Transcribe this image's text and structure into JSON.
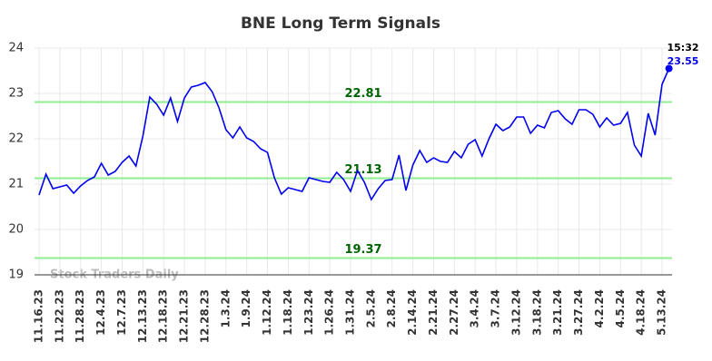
{
  "chart_data": {
    "type": "line",
    "title": "BNE Long Term Signals",
    "categories": [
      "11.16.23",
      null,
      null,
      "11.22.23",
      null,
      null,
      "11.28.23",
      null,
      null,
      "12.4.23",
      null,
      null,
      "12.7.23",
      null,
      null,
      "12.13.23",
      null,
      null,
      "12.18.23",
      null,
      null,
      "12.21.23",
      null,
      null,
      "12.28.23",
      null,
      null,
      "1.3.24",
      null,
      null,
      "1.9.24",
      null,
      null,
      "1.12.24",
      null,
      null,
      "1.18.24",
      null,
      null,
      "1.23.24",
      null,
      null,
      "1.26.24",
      null,
      null,
      "1.31.24",
      null,
      null,
      "2.5.24",
      null,
      null,
      "2.8.24",
      null,
      null,
      "2.14.24",
      null,
      null,
      "2.21.24",
      null,
      null,
      "2.27.24",
      null,
      null,
      "3.4.24",
      null,
      null,
      "3.7.24",
      null,
      null,
      "3.12.24",
      null,
      null,
      "3.18.24",
      null,
      null,
      "3.21.24",
      null,
      null,
      "3.27.24",
      null,
      null,
      "4.2.24",
      null,
      null,
      "4.5.24",
      null,
      null,
      "4.18.24",
      null,
      null,
      "5.13.24",
      null
    ],
    "series": [
      {
        "name": "BNE",
        "color": "#0000ee",
        "values": [
          20.76,
          21.22,
          20.9,
          20.94,
          20.98,
          20.8,
          20.96,
          21.08,
          21.16,
          21.46,
          21.2,
          21.28,
          21.48,
          21.62,
          21.4,
          22.06,
          22.92,
          22.76,
          22.52,
          22.9,
          22.38,
          22.9,
          23.14,
          23.18,
          23.24,
          23.04,
          22.68,
          22.2,
          22.02,
          22.26,
          22.02,
          21.94,
          21.78,
          21.7,
          21.14,
          20.78,
          20.92,
          20.88,
          20.84,
          21.14,
          21.1,
          21.06,
          21.04,
          21.26,
          21.1,
          20.84,
          21.3,
          21.04,
          20.66,
          20.9,
          21.08,
          21.1,
          21.64,
          20.86,
          21.42,
          21.74,
          21.48,
          21.58,
          21.5,
          21.48,
          21.72,
          21.58,
          21.88,
          21.98,
          21.62,
          22.0,
          22.32,
          22.18,
          22.26,
          22.48,
          22.48,
          22.12,
          22.3,
          22.24,
          22.58,
          22.62,
          22.44,
          22.32,
          22.64,
          22.64,
          22.54,
          22.26,
          22.46,
          22.3,
          22.34,
          22.58,
          21.86,
          21.62,
          22.56,
          22.08,
          23.2,
          23.55
        ]
      }
    ],
    "hlines": [
      {
        "value": 22.81,
        "color": "#90ee90"
      },
      {
        "value": 21.13,
        "color": "#90ee90"
      },
      {
        "value": 19.37,
        "color": "#90ee90"
      }
    ],
    "last_time": "15:32",
    "watermark": "Stock Traders Daily",
    "ylim": [
      19,
      24
    ],
    "yticks": [
      19,
      20,
      21,
      22,
      23,
      24
    ],
    "grid": true
  }
}
